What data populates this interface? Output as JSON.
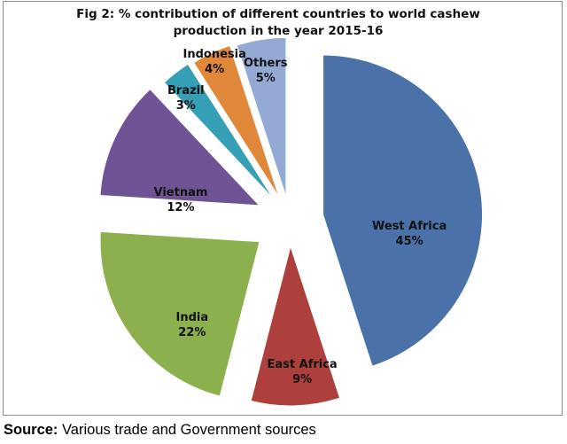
{
  "chart_data": {
    "type": "pie",
    "title": "Fig 2: % contribution of different countries to world cashew production in the year 2015-16",
    "exploded": true,
    "slices": [
      {
        "label": "West Africa",
        "value": 45,
        "display": "45%",
        "color": "#4A72A8"
      },
      {
        "label": "East Africa",
        "value": 9,
        "display": "9%",
        "color": "#AD403D"
      },
      {
        "label": "India",
        "value": 22,
        "display": "22%",
        "color": "#8CB04E"
      },
      {
        "label": "Vietnam",
        "value": 12,
        "display": "12%",
        "color": "#6E5495"
      },
      {
        "label": "Brazil",
        "value": 3,
        "display": "3%",
        "color": "#35A0B5"
      },
      {
        "label": "Indonesia",
        "value": 4,
        "display": "4%",
        "color": "#E0873A"
      },
      {
        "label": "Others",
        "value": 5,
        "display": "5%",
        "color": "#94AAD4"
      }
    ],
    "legend": "none"
  },
  "footer": {
    "source_label": "Source:",
    "source_text": "Various trade and Government sources"
  }
}
